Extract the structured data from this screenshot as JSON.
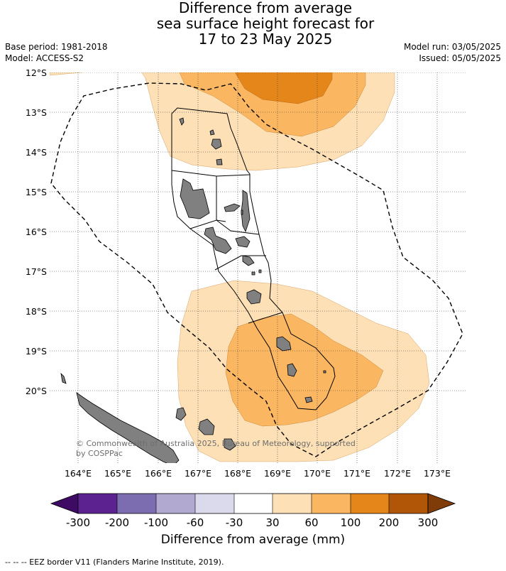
{
  "title": {
    "line1": "Difference from average",
    "line2": "sea surface height forecast for",
    "line3": "17 to 23 May 2025"
  },
  "meta": {
    "base_period": "Base period: 1981-2018",
    "model": "Model: ACCESS-S2",
    "model_run": "Model run: 03/05/2025",
    "issued": "Issued: 05/05/2025"
  },
  "map": {
    "lat_labels": [
      "12°S",
      "13°S",
      "14°S",
      "15°S",
      "16°S",
      "17°S",
      "18°S",
      "19°S",
      "20°S"
    ],
    "lon_labels": [
      "164°E",
      "165°E",
      "166°E",
      "167°E",
      "168°E",
      "169°E",
      "170°E",
      "171°E",
      "172°E",
      "173°E"
    ],
    "copyright_line1": "© Commonwealth of Australia 2025, Bureau of Meteorology, supported",
    "copyright_line2": "by COSPPac",
    "colors": {
      "land": "#808080",
      "level_30_60": "#fde0b6",
      "level_60_100": "#fbb661",
      "level_100_200": "#e48619"
    }
  },
  "colorbar": {
    "labels": [
      "-300",
      "-200",
      "-100",
      "-60",
      "-30",
      "30",
      "60",
      "100",
      "200",
      "300"
    ],
    "colors": [
      "#3f0a63",
      "#5c2390",
      "#7b6db0",
      "#b2a9d1",
      "#dadaec",
      "#ffffff",
      "#fde0b6",
      "#fbb661",
      "#e48619",
      "#b15506",
      "#7f3b08"
    ],
    "title": "Difference from average (mm)"
  },
  "footer": "--  --  -- EEZ border V11 (Flanders Marine Institute, 2019)."
}
